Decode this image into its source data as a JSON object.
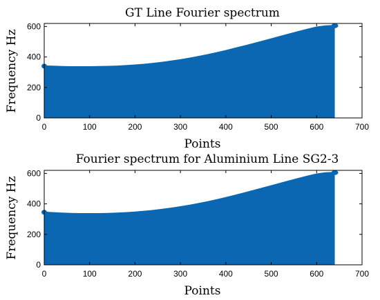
{
  "chart_data": [
    {
      "type": "area",
      "title": "GT Line Fourier spectrum",
      "xlabel": "Points",
      "ylabel": "Frequency Hz",
      "xlim": [
        0,
        700
      ],
      "ylim": [
        0,
        620
      ],
      "xticks": [
        0,
        100,
        200,
        300,
        400,
        500,
        600,
        700
      ],
      "yticks": [
        0,
        200,
        400,
        600
      ],
      "grid": false,
      "color": "#0b67b2",
      "x": [
        0,
        20,
        40,
        60,
        80,
        100,
        120,
        140,
        160,
        180,
        200,
        220,
        240,
        260,
        280,
        300,
        320,
        340,
        360,
        380,
        400,
        420,
        440,
        460,
        480,
        500,
        520,
        540,
        560,
        580,
        600,
        620,
        640
      ],
      "y": [
        340,
        338,
        336,
        335,
        335,
        335,
        336,
        337,
        339,
        342,
        346,
        351,
        357,
        364,
        372,
        381,
        391,
        402,
        414,
        427,
        441,
        456,
        471,
        486,
        502,
        518,
        534,
        550,
        566,
        581,
        595,
        603,
        605
      ]
    },
    {
      "type": "area",
      "title": "Fourier spectrum for Aluminium Line SG2-3",
      "xlabel": "Points",
      "ylabel": "Frequency Hz",
      "xlim": [
        0,
        700
      ],
      "ylim": [
        0,
        620
      ],
      "xticks": [
        0,
        100,
        200,
        300,
        400,
        500,
        600,
        700
      ],
      "yticks": [
        0,
        200,
        400,
        600
      ],
      "grid": false,
      "color": "#0b67b2",
      "x": [
        0,
        20,
        40,
        60,
        80,
        100,
        120,
        140,
        160,
        180,
        200,
        220,
        240,
        260,
        280,
        300,
        320,
        340,
        360,
        380,
        400,
        420,
        440,
        460,
        480,
        500,
        520,
        540,
        560,
        580,
        600,
        620,
        640
      ],
      "y": [
        345,
        341,
        338,
        336,
        335,
        335,
        335,
        336,
        338,
        341,
        345,
        350,
        356,
        363,
        371,
        380,
        390,
        401,
        413,
        426,
        440,
        455,
        470,
        486,
        502,
        518,
        534,
        550,
        566,
        581,
        595,
        603,
        605
      ]
    }
  ]
}
